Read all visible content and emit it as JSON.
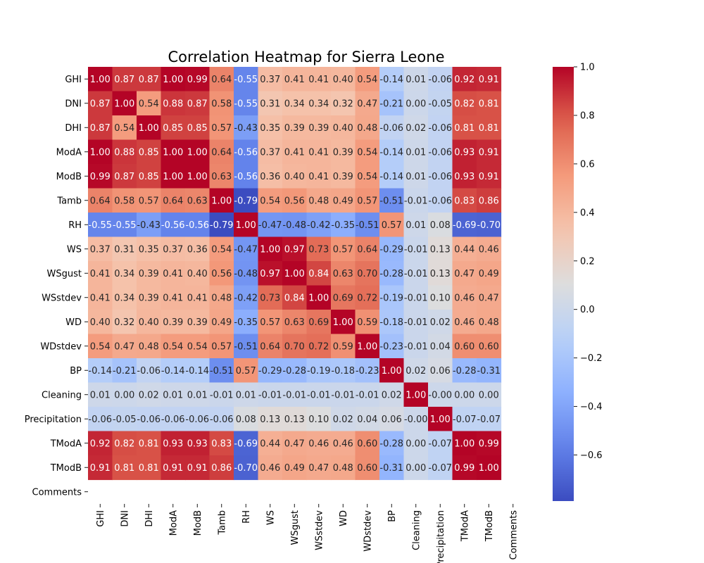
{
  "chart_data": {
    "type": "heatmap",
    "title": "Correlation Heatmap for Sierra Leone",
    "xlabel": "",
    "ylabel": "",
    "colormap": "coolwarm",
    "vmin": -0.79,
    "vmax": 1.0,
    "grid": false,
    "legend": "colorbar-right",
    "row_labels": [
      "GHI",
      "DNI",
      "DHI",
      "ModA",
      "ModB",
      "Tamb",
      "RH",
      "WS",
      "WSgust",
      "WSstdev",
      "WD",
      "WDstdev",
      "BP",
      "Cleaning",
      "Precipitation",
      "TModA",
      "TModB",
      "Comments"
    ],
    "col_labels": [
      "GHI",
      "DNI",
      "DHI",
      "ModA",
      "ModB",
      "Tamb",
      "RH",
      "WS",
      "WSgust",
      "WSstdev",
      "WD",
      "WDstdev",
      "BP",
      "Cleaning",
      "Precipitation",
      "TModA",
      "TModB",
      "Comments"
    ],
    "values": [
      [
        1.0,
        0.87,
        0.87,
        1.0,
        0.99,
        0.64,
        -0.55,
        0.37,
        0.41,
        0.41,
        0.4,
        0.54,
        -0.14,
        0.01,
        -0.06,
        0.92,
        0.91,
        null
      ],
      [
        0.87,
        1.0,
        0.54,
        0.88,
        0.87,
        0.58,
        -0.55,
        0.31,
        0.34,
        0.34,
        0.32,
        0.47,
        -0.21,
        0.0,
        -0.05,
        0.82,
        0.81,
        null
      ],
      [
        0.87,
        0.54,
        1.0,
        0.85,
        0.85,
        0.57,
        -0.43,
        0.35,
        0.39,
        0.39,
        0.4,
        0.48,
        -0.06,
        0.02,
        -0.06,
        0.81,
        0.81,
        null
      ],
      [
        1.0,
        0.88,
        0.85,
        1.0,
        1.0,
        0.64,
        -0.56,
        0.37,
        0.41,
        0.41,
        0.39,
        0.54,
        -0.14,
        0.01,
        -0.06,
        0.93,
        0.91,
        null
      ],
      [
        0.99,
        0.87,
        0.85,
        1.0,
        1.0,
        0.63,
        -0.56,
        0.36,
        0.4,
        0.41,
        0.39,
        0.54,
        -0.14,
        0.01,
        -0.06,
        0.93,
        0.91,
        null
      ],
      [
        0.64,
        0.58,
        0.57,
        0.64,
        0.63,
        1.0,
        -0.79,
        0.54,
        0.56,
        0.48,
        0.49,
        0.57,
        -0.51,
        -0.01,
        -0.06,
        0.83,
        0.86,
        null
      ],
      [
        -0.55,
        -0.55,
        -0.43,
        -0.56,
        -0.56,
        -0.79,
        1.0,
        -0.47,
        -0.48,
        -0.42,
        -0.35,
        -0.51,
        0.57,
        0.01,
        0.08,
        -0.69,
        -0.7,
        null
      ],
      [
        0.37,
        0.31,
        0.35,
        0.37,
        0.36,
        0.54,
        -0.47,
        1.0,
        0.97,
        0.73,
        0.57,
        0.64,
        -0.29,
        -0.01,
        0.13,
        0.44,
        0.46,
        null
      ],
      [
        0.41,
        0.34,
        0.39,
        0.41,
        0.4,
        0.56,
        -0.48,
        0.97,
        1.0,
        0.84,
        0.63,
        0.7,
        -0.28,
        -0.01,
        0.13,
        0.47,
        0.49,
        null
      ],
      [
        0.41,
        0.34,
        0.39,
        0.41,
        0.41,
        0.48,
        -0.42,
        0.73,
        0.84,
        1.0,
        0.69,
        0.72,
        -0.19,
        -0.01,
        0.1,
        0.46,
        0.47,
        null
      ],
      [
        0.4,
        0.32,
        0.4,
        0.39,
        0.39,
        0.49,
        -0.35,
        0.57,
        0.63,
        0.69,
        1.0,
        0.59,
        -0.18,
        -0.01,
        0.02,
        0.46,
        0.48,
        null
      ],
      [
        0.54,
        0.47,
        0.48,
        0.54,
        0.54,
        0.57,
        -0.51,
        0.64,
        0.7,
        0.72,
        0.59,
        1.0,
        -0.23,
        -0.01,
        0.04,
        0.6,
        0.6,
        null
      ],
      [
        -0.14,
        -0.21,
        -0.06,
        -0.14,
        -0.14,
        -0.51,
        0.57,
        -0.29,
        -0.28,
        -0.19,
        -0.18,
        -0.23,
        1.0,
        0.02,
        0.06,
        -0.28,
        -0.31,
        null
      ],
      [
        0.01,
        0.0,
        0.02,
        0.01,
        0.01,
        -0.01,
        0.01,
        -0.01,
        -0.01,
        -0.01,
        -0.01,
        -0.01,
        0.02,
        1.0,
        -0.0,
        0.0,
        0.0,
        null
      ],
      [
        -0.06,
        -0.05,
        -0.06,
        -0.06,
        -0.06,
        -0.06,
        0.08,
        0.13,
        0.13,
        0.1,
        0.02,
        0.04,
        0.06,
        -0.0,
        1.0,
        -0.07,
        -0.07,
        null
      ],
      [
        0.92,
        0.82,
        0.81,
        0.93,
        0.93,
        0.83,
        -0.69,
        0.44,
        0.47,
        0.46,
        0.46,
        0.6,
        -0.28,
        0.0,
        -0.07,
        1.0,
        0.99,
        null
      ],
      [
        0.91,
        0.81,
        0.81,
        0.91,
        0.91,
        0.86,
        -0.7,
        0.46,
        0.49,
        0.47,
        0.48,
        0.6,
        -0.31,
        0.0,
        -0.07,
        0.99,
        1.0,
        null
      ],
      [
        null,
        null,
        null,
        null,
        null,
        null,
        null,
        null,
        null,
        null,
        null,
        null,
        null,
        null,
        null,
        null,
        null,
        null
      ]
    ],
    "colorbar": {
      "ticks": [
        1.0,
        0.8,
        0.6,
        0.4,
        0.2,
        0.0,
        -0.2,
        -0.4,
        -0.6
      ],
      "tick_labels": [
        "1.0",
        "0.8",
        "0.6",
        "0.4",
        "0.2",
        "0.0",
        "−0.2",
        "−0.4",
        "−0.6"
      ]
    }
  }
}
